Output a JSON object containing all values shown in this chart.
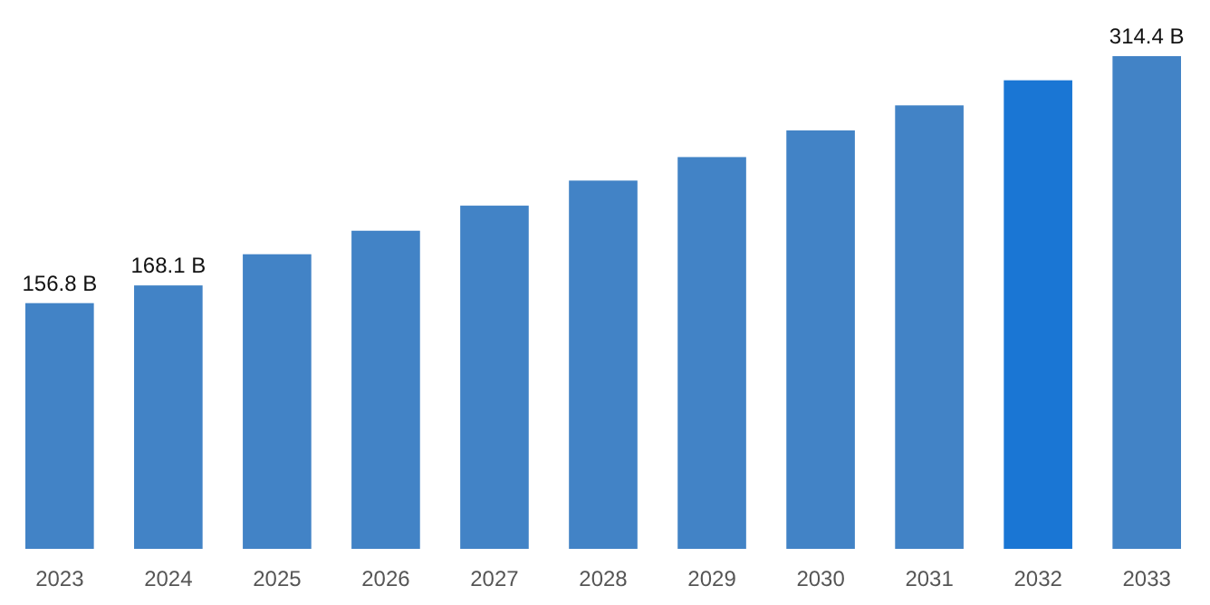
{
  "chart_data": {
    "type": "bar",
    "categories": [
      "2023",
      "2024",
      "2025",
      "2026",
      "2027",
      "2028",
      "2029",
      "2030",
      "2031",
      "2032",
      "2033"
    ],
    "values": [
      156.8,
      168.1,
      188,
      203,
      219,
      235,
      250,
      267,
      283,
      299,
      314.4
    ],
    "value_labels": [
      "156.8 B",
      "168.1 B",
      null,
      null,
      null,
      null,
      null,
      null,
      null,
      null,
      "314.4 B"
    ],
    "colors": [
      "#4283c6",
      "#4283c6",
      "#4283c6",
      "#4283c6",
      "#4283c6",
      "#4283c6",
      "#4283c6",
      "#4283c6",
      "#4283c6",
      "#1a76d4",
      "#4283c6"
    ],
    "data_labels": false
  }
}
